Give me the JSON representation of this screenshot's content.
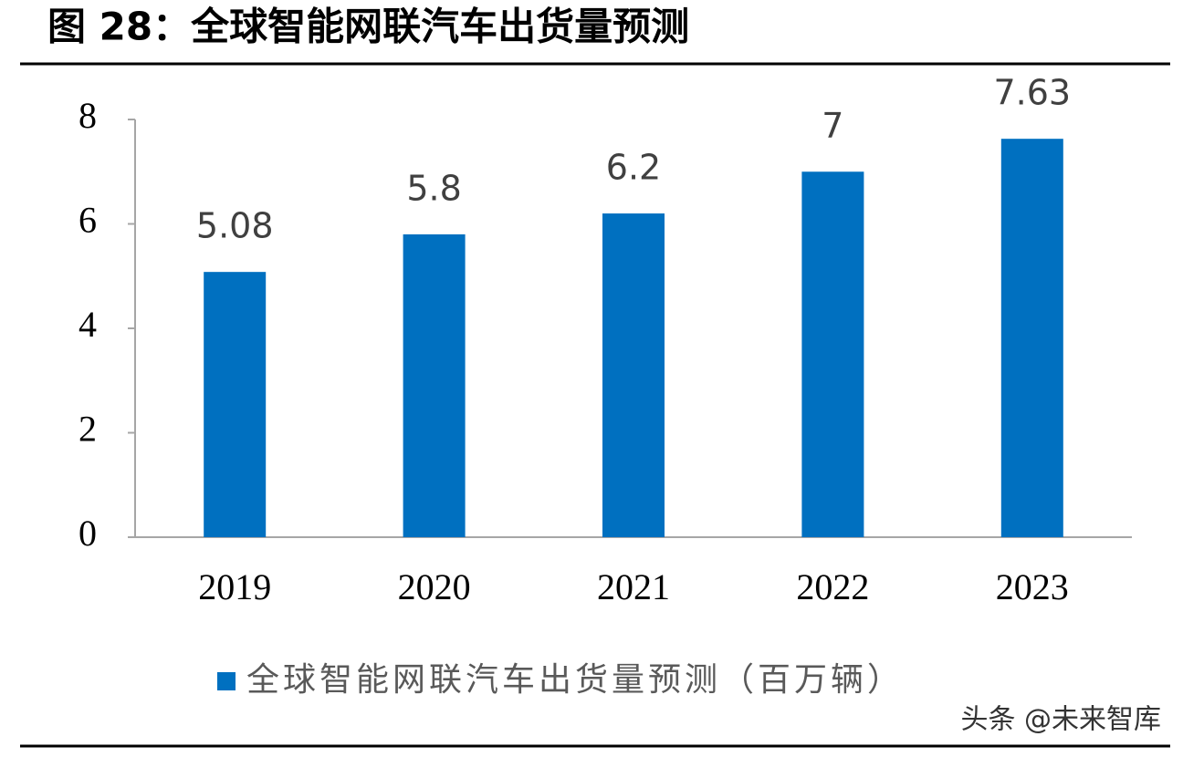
{
  "chart_data": {
    "type": "bar",
    "title": "图 28：全球智能网联汽车出货量预测",
    "categories": [
      "2019",
      "2020",
      "2021",
      "2022",
      "2023"
    ],
    "series": [
      {
        "name": "全球智能网联汽车出货量预测（百万辆）",
        "color": "#0070c0",
        "values": [
          5.08,
          5.8,
          6.2,
          7,
          7.63
        ]
      }
    ],
    "ylim": [
      0,
      8
    ],
    "yticks": [
      0,
      2,
      4,
      6,
      8
    ],
    "grid": false,
    "legend": "bottom",
    "watermark": "头条 @未来智库"
  }
}
